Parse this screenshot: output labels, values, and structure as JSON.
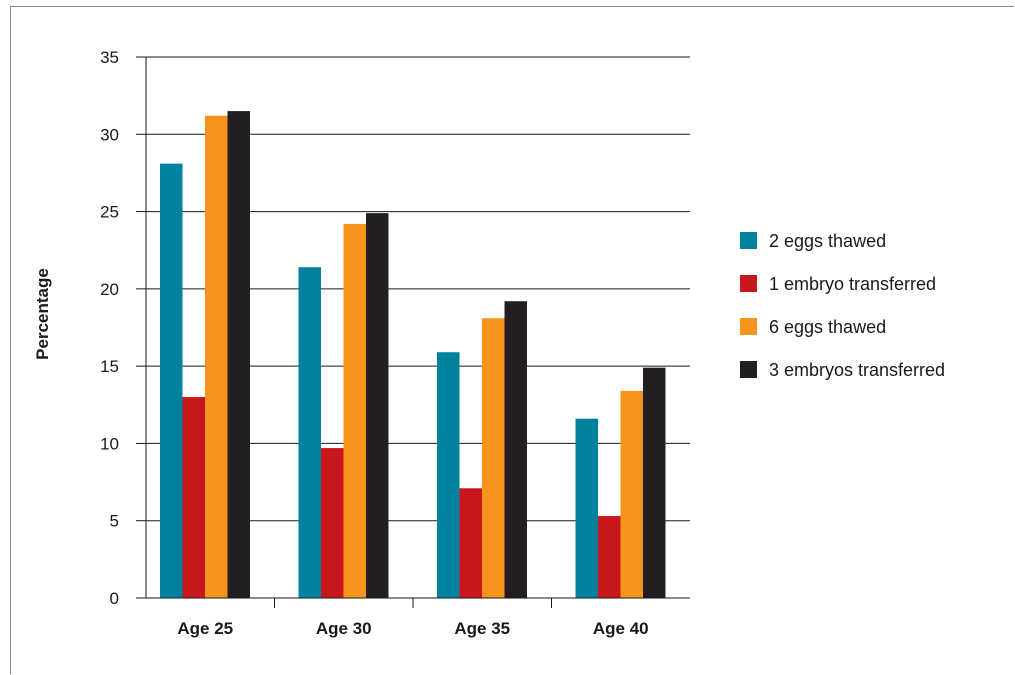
{
  "chart_data": {
    "type": "bar",
    "title": "",
    "xlabel": "",
    "ylabel": "Percentage",
    "ylim": [
      0,
      35
    ],
    "yticks": [
      0,
      5,
      10,
      15,
      20,
      25,
      30,
      35
    ],
    "grid": true,
    "legend_position": "right",
    "categories": [
      "Age 25",
      "Age 30",
      "Age 35",
      "Age 40"
    ],
    "series": [
      {
        "name": "2 eggs thawed",
        "color": "#00829f",
        "values": [
          28.1,
          21.4,
          15.9,
          11.6
        ]
      },
      {
        "name": "1 embryo transferred",
        "color": "#c8161d",
        "values": [
          13.0,
          9.7,
          7.1,
          5.3
        ]
      },
      {
        "name": "6 eggs thawed",
        "color": "#f7941d",
        "values": [
          31.2,
          24.2,
          18.1,
          13.4
        ]
      },
      {
        "name": "3 embryos transferred",
        "color": "#231f20",
        "values": [
          31.5,
          24.9,
          19.2,
          14.9
        ]
      }
    ]
  }
}
